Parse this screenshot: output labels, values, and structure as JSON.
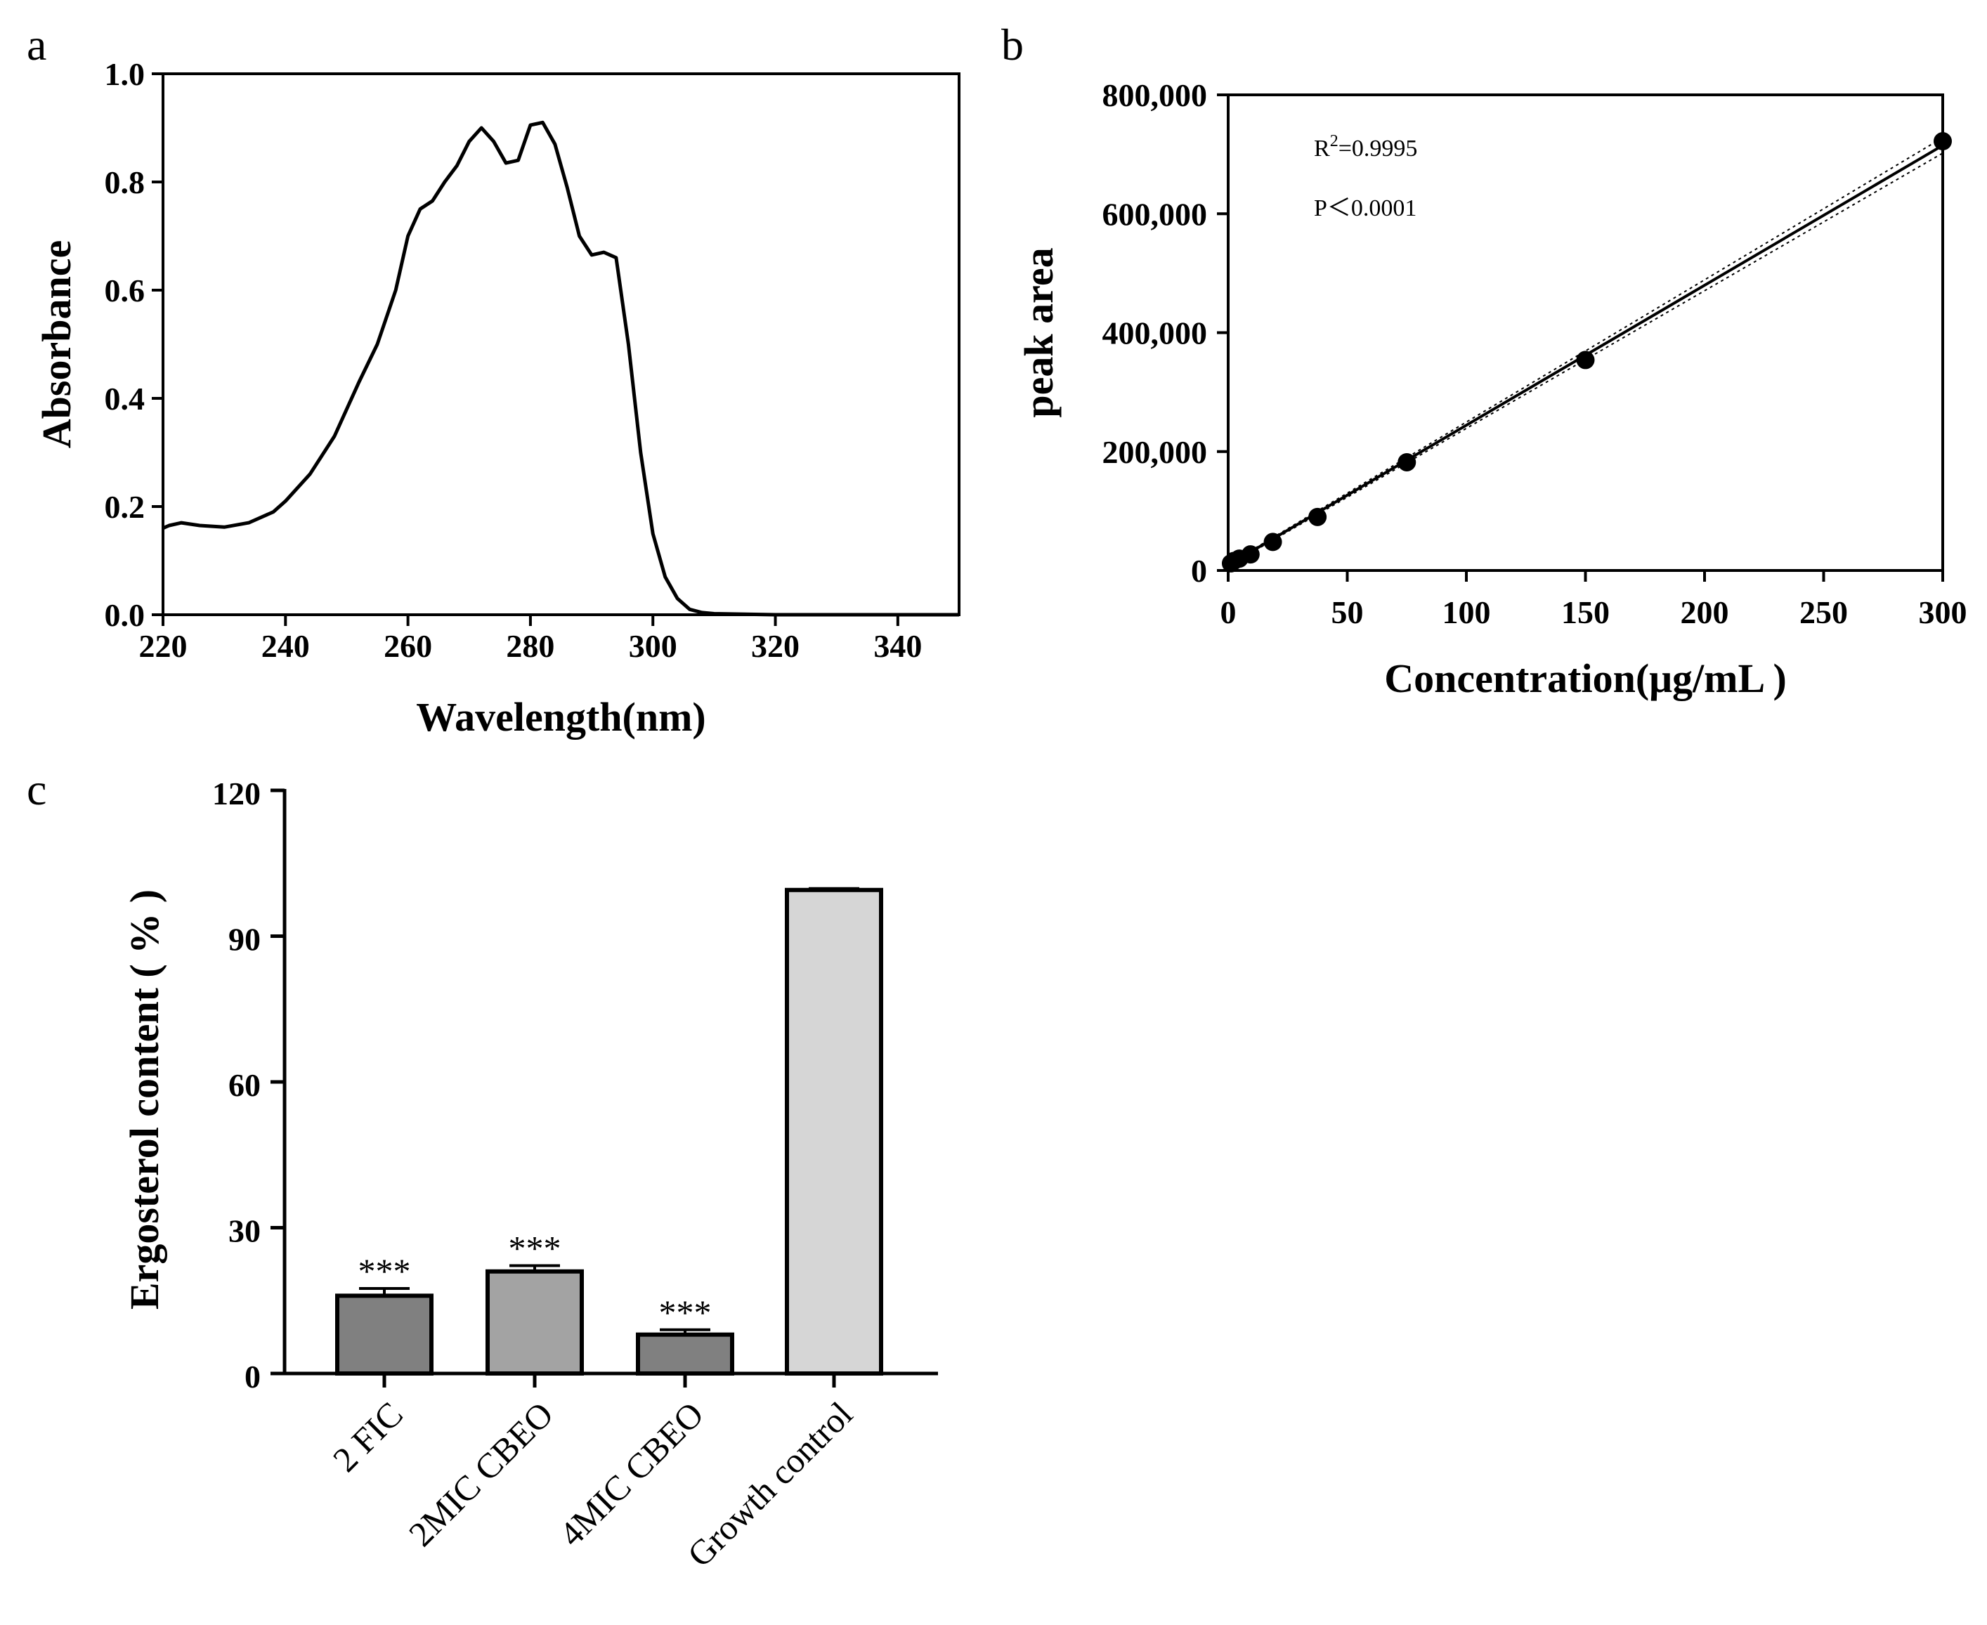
{
  "panels": {
    "a": "a",
    "b": "b",
    "c": "c"
  },
  "chart_data": [
    {
      "id": "a",
      "type": "line",
      "title": "",
      "xlabel": "Wavelength(nm)",
      "ylabel": "Absorbance",
      "xlim": [
        220,
        350
      ],
      "ylim": [
        0,
        1.0
      ],
      "xticks": [
        220,
        240,
        260,
        280,
        300,
        320,
        340
      ],
      "xtick_labels": [
        "220",
        "240",
        "260",
        "280",
        "300",
        "320",
        "340"
      ],
      "yticks": [
        0,
        0.2,
        0.4,
        0.6,
        0.8,
        1.0
      ],
      "ytick_labels": [
        "0.0",
        "0.2",
        "0.4",
        "0.6",
        "0.8",
        "1.0"
      ],
      "series": [
        {
          "name": "absorbance spectrum",
          "x": [
            220,
            221,
            223,
            226,
            230,
            234,
            238,
            240,
            244,
            248,
            252,
            255,
            258,
            260,
            262,
            264,
            266,
            268,
            270,
            272,
            274,
            276,
            278,
            280,
            282,
            284,
            286,
            288,
            290,
            292,
            294,
            296,
            298,
            300,
            302,
            304,
            306,
            308,
            310,
            315,
            320,
            330,
            340,
            350
          ],
          "y": [
            0.16,
            0.165,
            0.17,
            0.165,
            0.162,
            0.17,
            0.19,
            0.21,
            0.26,
            0.33,
            0.43,
            0.5,
            0.6,
            0.7,
            0.75,
            0.765,
            0.8,
            0.83,
            0.875,
            0.9,
            0.875,
            0.835,
            0.84,
            0.905,
            0.91,
            0.87,
            0.79,
            0.7,
            0.665,
            0.67,
            0.66,
            0.5,
            0.3,
            0.15,
            0.07,
            0.03,
            0.01,
            0.004,
            0.002,
            0.001,
            0.0,
            0.0,
            0.0,
            0.0
          ]
        }
      ]
    },
    {
      "id": "b",
      "type": "scatter",
      "title": "",
      "xlabel": "Concentration(μg/mL )",
      "ylabel": "peak area",
      "xlim": [
        0,
        300
      ],
      "ylim": [
        0,
        800000
      ],
      "xticks": [
        0,
        50,
        100,
        150,
        200,
        250,
        300
      ],
      "xtick_labels": [
        "0",
        "50",
        "100",
        "150",
        "200",
        "250",
        "300"
      ],
      "yticks": [
        0,
        200000,
        400000,
        600000,
        800000
      ],
      "ytick_labels": [
        "0",
        "200,000",
        "400,000",
        "600,000",
        "800,000"
      ],
      "points": {
        "x": [
          1.17,
          2.34,
          4.69,
          9.38,
          18.75,
          37.5,
          75,
          150,
          300
        ],
        "y": [
          12000,
          16000,
          20000,
          27000,
          48000,
          90000,
          182000,
          354000,
          722000
        ]
      },
      "fit": {
        "x": [
          0,
          300
        ],
        "y": [
          9000,
          715000
        ]
      },
      "ci_upper": {
        "x": [
          0,
          300
        ],
        "y": [
          10500,
          728000
        ]
      },
      "ci_lower": {
        "x": [
          0,
          300
        ],
        "y": [
          7500,
          702000
        ]
      },
      "annotations": {
        "r2_prefix": "R",
        "r2_sup": "2",
        "r2_value": "=0.9995",
        "p_text": "P＜0.0001"
      }
    },
    {
      "id": "c",
      "type": "bar",
      "title": "",
      "xlabel": "",
      "ylabel": "Ergosterol content ( % )",
      "ylim": [
        0,
        120
      ],
      "yticks": [
        0,
        30,
        60,
        90,
        120
      ],
      "ytick_labels": [
        "0",
        "30",
        "60",
        "90",
        "120"
      ],
      "categories": [
        "2 FIC",
        "2MIC CBEO",
        "4MIC CBEO",
        "Growth control"
      ],
      "values": [
        16,
        21,
        8,
        99.5
      ],
      "errors": [
        1.5,
        1.2,
        1.0,
        0.3
      ],
      "significance": [
        "***",
        "***",
        "***",
        ""
      ],
      "colors": [
        "#808080",
        "#a3a3a3",
        "#808080",
        "#d6d6d6"
      ]
    }
  ]
}
